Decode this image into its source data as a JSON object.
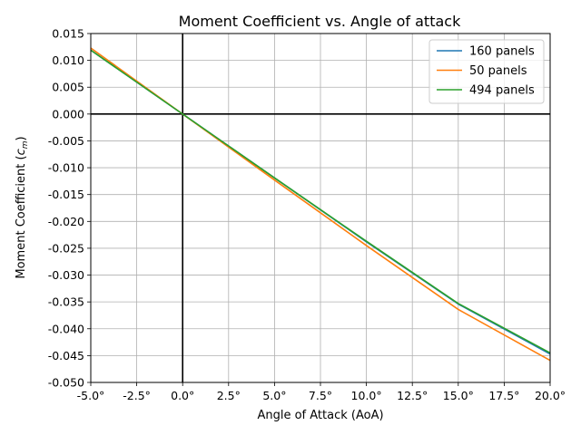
{
  "chart_data": {
    "type": "line",
    "title": "Moment Coefficient vs. Angle of attack",
    "xlabel": "Angle of Attack (AoA)",
    "ylabel_main": "Moment Coefficient (",
    "ylabel_symbol": "c",
    "ylabel_sub": "m",
    "ylabel_close": ")",
    "xlim": [
      -5,
      20
    ],
    "ylim": [
      -0.05,
      0.015
    ],
    "x_ticks": [
      -5,
      -2.5,
      0,
      2.5,
      5,
      7.5,
      10,
      12.5,
      15,
      17.5,
      20
    ],
    "x_tick_labels": [
      "-5.0°",
      "-2.5°",
      "0.0°",
      "2.5°",
      "5.0°",
      "7.5°",
      "10.0°",
      "12.5°",
      "15.0°",
      "17.5°",
      "20.0°"
    ],
    "y_ticks": [
      0.015,
      0.01,
      0.005,
      0,
      -0.005,
      -0.01,
      -0.015,
      -0.02,
      -0.025,
      -0.03,
      -0.035,
      -0.04,
      -0.045,
      -0.05
    ],
    "y_tick_labels": [
      "0.015",
      "0.010",
      "0.005",
      "0.000",
      "-0.005",
      "-0.010",
      "-0.015",
      "-0.020",
      "-0.025",
      "-0.030",
      "-0.035",
      "-0.040",
      "-0.045",
      "-0.050"
    ],
    "grid": true,
    "legend_position": "top-right",
    "series": [
      {
        "name": "160 panels",
        "color": "#1f77b4",
        "x": [
          -5,
          0,
          5,
          10,
          15,
          20
        ],
        "y": [
          0.0119,
          0.0,
          -0.0119,
          -0.0238,
          -0.0354,
          -0.0447
        ]
      },
      {
        "name": "50 panels",
        "color": "#ff7f0e",
        "x": [
          -5,
          0,
          5,
          10,
          15,
          20
        ],
        "y": [
          0.0123,
          0.0,
          -0.0123,
          -0.0245,
          -0.0364,
          -0.0459
        ]
      },
      {
        "name": "494 panels",
        "color": "#2ca02c",
        "x": [
          -5,
          0,
          5,
          10,
          15,
          20
        ],
        "y": [
          0.0119,
          0.0,
          -0.0119,
          -0.0237,
          -0.0353,
          -0.0445
        ]
      }
    ]
  }
}
